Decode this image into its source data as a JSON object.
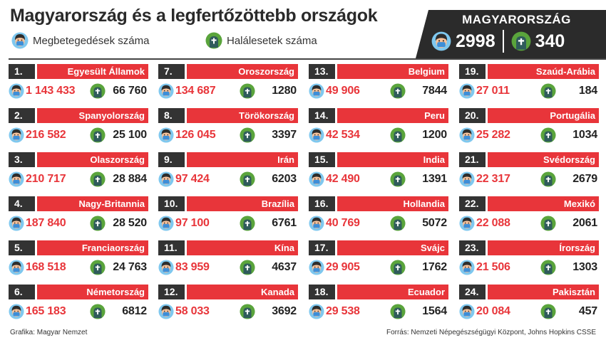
{
  "title": "Magyarország és a legfertőzöttebb országok",
  "legend": {
    "cases_label": "Megbetegedések száma",
    "deaths_label": "Halálesetek száma"
  },
  "hungary": {
    "name": "MAGYARORSZÁG",
    "cases": "2998",
    "deaths": "340"
  },
  "colors": {
    "accent": "#e8353a",
    "dark": "#333333",
    "face": "#f5c19a",
    "mask": "#3d8ed8",
    "grave": "#2f5b5b",
    "grave_bg": "#5aa43c"
  },
  "countries": [
    {
      "rank": "1.",
      "name": "Egyesült Államok",
      "cases": "1 143 433",
      "deaths": "66 760"
    },
    {
      "rank": "2.",
      "name": "Spanyolország",
      "cases": "216 582",
      "deaths": "25 100"
    },
    {
      "rank": "3.",
      "name": "Olaszország",
      "cases": "210 717",
      "deaths": "28 884"
    },
    {
      "rank": "4.",
      "name": "Nagy-Britannia",
      "cases": "187 840",
      "deaths": "28 520"
    },
    {
      "rank": "5.",
      "name": "Franciaország",
      "cases": "168 518",
      "deaths": "24 763"
    },
    {
      "rank": "6.",
      "name": "Németország",
      "cases": "165 183",
      "deaths": "6812"
    },
    {
      "rank": "7.",
      "name": "Oroszország",
      "cases": "134 687",
      "deaths": "1280"
    },
    {
      "rank": "8.",
      "name": "Törökország",
      "cases": "126 045",
      "deaths": "3397"
    },
    {
      "rank": "9.",
      "name": "Irán",
      "cases": "97 424",
      "deaths": "6203"
    },
    {
      "rank": "10.",
      "name": "Brazília",
      "cases": "97 100",
      "deaths": "6761"
    },
    {
      "rank": "11.",
      "name": "Kína",
      "cases": "83 959",
      "deaths": "4637"
    },
    {
      "rank": "12.",
      "name": "Kanada",
      "cases": "58 033",
      "deaths": "3692"
    },
    {
      "rank": "13.",
      "name": "Belgium",
      "cases": "49 906",
      "deaths": "7844"
    },
    {
      "rank": "14.",
      "name": "Peru",
      "cases": "42 534",
      "deaths": "1200"
    },
    {
      "rank": "15.",
      "name": "India",
      "cases": "42 490",
      "deaths": "1391"
    },
    {
      "rank": "16.",
      "name": "Hollandia",
      "cases": "40 769",
      "deaths": "5072"
    },
    {
      "rank": "17.",
      "name": "Svájc",
      "cases": "29 905",
      "deaths": "1762"
    },
    {
      "rank": "18.",
      "name": "Ecuador",
      "cases": "29 538",
      "deaths": "1564"
    },
    {
      "rank": "19.",
      "name": "Szaúd-Arábia",
      "cases": "27 011",
      "deaths": "184"
    },
    {
      "rank": "20.",
      "name": "Portugália",
      "cases": "25 282",
      "deaths": "1034"
    },
    {
      "rank": "21.",
      "name": "Svédország",
      "cases": "22 317",
      "deaths": "2679"
    },
    {
      "rank": "22.",
      "name": "Mexikó",
      "cases": "22 088",
      "deaths": "2061"
    },
    {
      "rank": "23.",
      "name": "Írország",
      "cases": "21 506",
      "deaths": "1303"
    },
    {
      "rank": "24.",
      "name": "Pakisztán",
      "cases": "20 084",
      "deaths": "457"
    }
  ],
  "footer": {
    "credit": "Grafika: Magyar Nemzet",
    "source": "Forrás: Nemzeti Népegészségügyi Központ, Johns Hopkins CSSE"
  }
}
